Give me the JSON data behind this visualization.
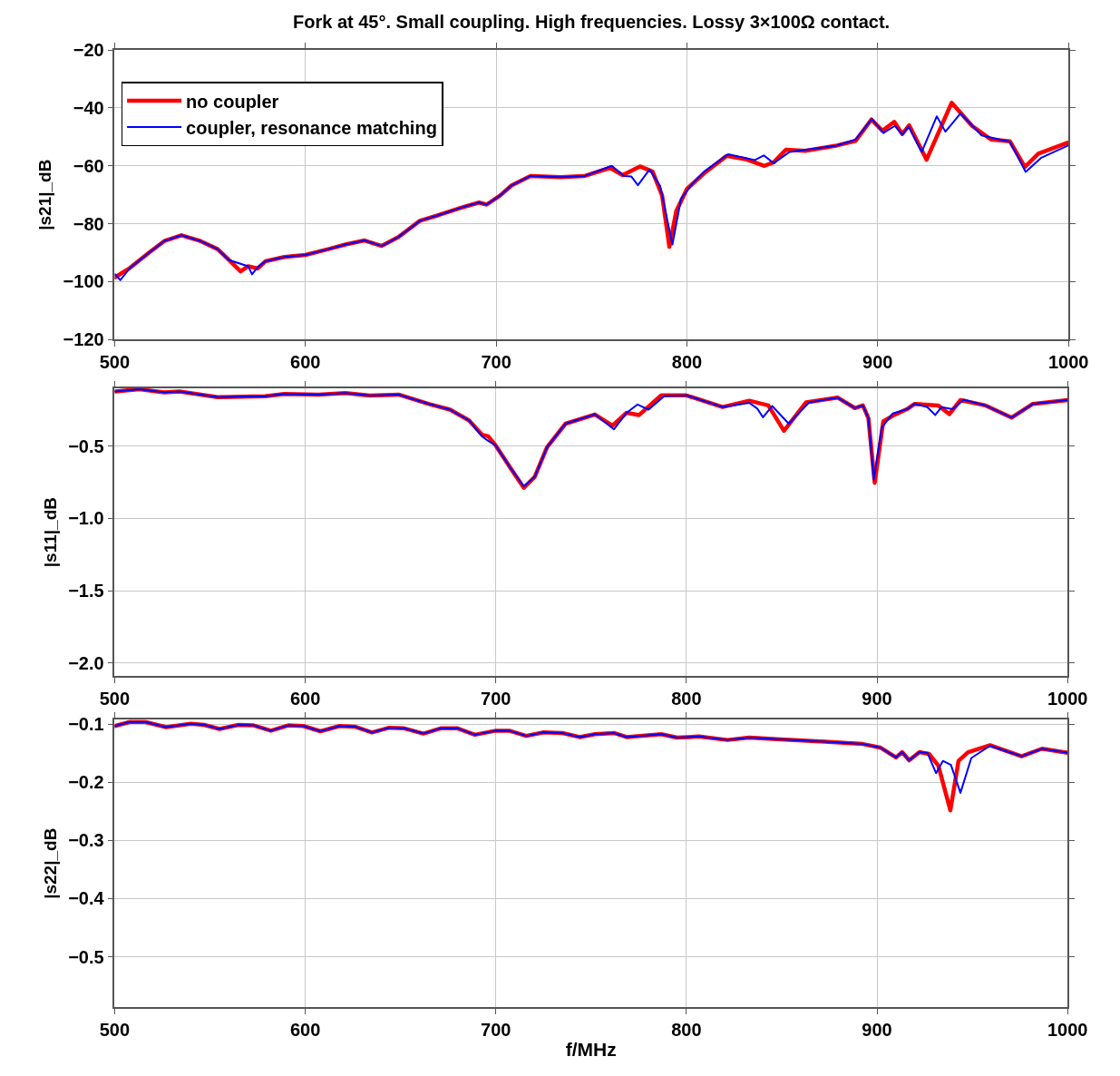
{
  "chart_data": [
    {
      "type": "line",
      "title": "Fork at 45°. Small coupling. High frequencies. Lossy 3×100Ω contact.",
      "ylabel": "|s21|_dB",
      "legend": "top left",
      "grid": true,
      "xlim": [
        500,
        1000
      ],
      "xticks": [
        500,
        600,
        700,
        800,
        900,
        1000
      ],
      "ylim": [
        -120,
        -20
      ],
      "yticks": [
        {
          "value": -20,
          "label": "−20"
        },
        {
          "value": -40,
          "label": "−40"
        },
        {
          "value": -60,
          "label": "−60"
        },
        {
          "value": -80,
          "label": "−80"
        },
        {
          "value": -100,
          "label": "−100"
        },
        {
          "value": -120,
          "label": "−120"
        }
      ],
      "series": [
        {
          "name": "no coupler",
          "color": "#ff0000",
          "x": [
            500.3,
            508,
            518,
            526,
            535,
            545,
            554,
            560,
            566,
            570,
            575,
            579,
            589,
            600,
            612,
            621,
            631,
            640,
            649,
            660,
            670,
            681,
            691,
            695,
            702,
            708,
            718,
            734,
            746.5,
            759.7,
            766.3,
            775.4,
            782,
            787,
            790.8,
            794.4,
            800,
            809,
            820.8,
            830.7,
            840.6,
            845.5,
            852,
            862,
            878.5,
            888.4,
            896.7,
            902.5,
            908.7,
            912.9,
            916.5,
            925.6,
            938.8,
            949.5,
            959.4,
            969.3,
            977.2,
            984.2,
            999.8
          ],
          "values": [
            -98.5,
            -95.3,
            -90,
            -86,
            -84,
            -86,
            -88.8,
            -92.6,
            -96.5,
            -94.7,
            -95.5,
            -93,
            -91.5,
            -90.8,
            -88.8,
            -87.2,
            -85.8,
            -87.7,
            -84.5,
            -79,
            -77,
            -74.6,
            -72.7,
            -73.4,
            -70.3,
            -66.8,
            -63.5,
            -63.9,
            -63.5,
            -60.7,
            -63.2,
            -60.2,
            -62,
            -70.3,
            -88,
            -75.7,
            -68,
            -62.6,
            -56.6,
            -57.7,
            -60,
            -58.8,
            -54.4,
            -54.8,
            -53,
            -51.4,
            -44,
            -47.9,
            -44.8,
            -49,
            -46,
            -57.9,
            -38.2,
            -46.2,
            -50.9,
            -51.5,
            -60.4,
            -55.8,
            -52
          ]
        },
        {
          "name": "coupler, resonance matching",
          "color": "#0000ff",
          "x": [
            500.3,
            503,
            508,
            518,
            526,
            535,
            545,
            554,
            560,
            570,
            572,
            575,
            579,
            589,
            600,
            612,
            621,
            631,
            640,
            649,
            660,
            670,
            681,
            691,
            695,
            702,
            708,
            718,
            734,
            746.5,
            760.6,
            767,
            770.9,
            774.3,
            780.4,
            786,
            792.4,
            796.9,
            802.6,
            809,
            821.6,
            835.6,
            840.3,
            845.5,
            853.8,
            878.5,
            888.4,
            897,
            903,
            909,
            912.9,
            916.2,
            923.1,
            931,
            935.5,
            943.4,
            954.5,
            969.3,
            977.6,
            985.8,
            999.8
          ],
          "values": [
            -97.5,
            -99.5,
            -95.3,
            -90,
            -86,
            -84,
            -86,
            -88.8,
            -92.6,
            -94.7,
            -97.5,
            -95,
            -93,
            -91.5,
            -90.8,
            -88.8,
            -87.2,
            -85.8,
            -87.7,
            -84.5,
            -79,
            -77,
            -74.6,
            -72.7,
            -73.4,
            -70.3,
            -66.8,
            -63.5,
            -63.9,
            -63.5,
            -60,
            -63.5,
            -63.7,
            -66.7,
            -61.3,
            -67,
            -87.2,
            -71.4,
            -66.4,
            -62,
            -56,
            -58,
            -56.4,
            -59.1,
            -55.2,
            -53,
            -50.9,
            -43.8,
            -48.7,
            -46.2,
            -49.3,
            -46.4,
            -55.2,
            -42.9,
            -48.2,
            -41.9,
            -49.5,
            -51.7,
            -62.1,
            -57.2,
            -53
          ]
        }
      ]
    },
    {
      "type": "line",
      "ylabel": "|s11|_dB",
      "grid": true,
      "xlim": [
        500,
        1000
      ],
      "xticks": [
        500,
        600,
        700,
        800,
        900,
        1000
      ],
      "ylim": [
        -2.09,
        -0.1
      ],
      "yticks": [
        {
          "value": -0.5,
          "label": "−0.5"
        },
        {
          "value": -1.0,
          "label": "−1.0"
        },
        {
          "value": -1.5,
          "label": "−1.5"
        },
        {
          "value": -2.0,
          "label": "−2.0"
        }
      ],
      "series": [
        {
          "color": "#ff0000",
          "x": [
            500.3,
            513,
            526,
            534,
            554,
            579,
            589,
            607,
            621,
            634,
            649,
            665,
            676,
            686,
            692.7,
            696,
            700,
            707.5,
            714.7,
            720.4,
            726.9,
            736.6,
            752,
            761.2,
            768.6,
            775.2,
            786.8,
            800,
            819,
            833,
            843,
            851.2,
            862.8,
            879.3,
            888.4,
            892.6,
            895.5,
            898.8,
            903.3,
            909,
            915.7,
            919.8,
            932.2,
            938,
            943.8,
            957,
            970.6,
            981.8,
            1000
          ],
          "values": [
            -0.121,
            -0.106,
            -0.128,
            -0.121,
            -0.16,
            -0.154,
            -0.139,
            -0.143,
            -0.132,
            -0.149,
            -0.143,
            -0.208,
            -0.247,
            -0.322,
            -0.42,
            -0.431,
            -0.496,
            -0.647,
            -0.788,
            -0.712,
            -0.506,
            -0.344,
            -0.28,
            -0.357,
            -0.269,
            -0.284,
            -0.148,
            -0.148,
            -0.229,
            -0.185,
            -0.218,
            -0.394,
            -0.196,
            -0.163,
            -0.236,
            -0.218,
            -0.306,
            -0.753,
            -0.328,
            -0.284,
            -0.244,
            -0.207,
            -0.218,
            -0.278,
            -0.181,
            -0.218,
            -0.302,
            -0.207,
            -0.181
          ]
        },
        {
          "color": "#0000ff",
          "x": [
            500.3,
            513,
            526,
            534,
            554,
            579,
            589,
            607,
            621,
            634,
            649,
            665,
            676,
            686,
            692.7,
            696,
            700,
            707.5,
            714.7,
            720.4,
            726.9,
            736.6,
            752,
            762,
            768.6,
            774.4,
            780.2,
            788.4,
            800,
            819,
            833,
            837.2,
            840.2,
            845,
            853.7,
            864.5,
            879.3,
            888.4,
            892.6,
            895.5,
            898.3,
            902.5,
            908.3,
            915.7,
            919.8,
            926.4,
            930.6,
            933.9,
            939.7,
            945.5,
            957,
            970.6,
            981.8,
            1000
          ],
          "values": [
            -0.121,
            -0.106,
            -0.128,
            -0.121,
            -0.16,
            -0.154,
            -0.139,
            -0.143,
            -0.132,
            -0.149,
            -0.143,
            -0.208,
            -0.247,
            -0.322,
            -0.431,
            -0.463,
            -0.496,
            -0.647,
            -0.777,
            -0.712,
            -0.506,
            -0.344,
            -0.28,
            -0.383,
            -0.269,
            -0.211,
            -0.247,
            -0.152,
            -0.148,
            -0.229,
            -0.2,
            -0.24,
            -0.3,
            -0.222,
            -0.344,
            -0.196,
            -0.163,
            -0.236,
            -0.218,
            -0.306,
            -0.731,
            -0.372,
            -0.273,
            -0.244,
            -0.207,
            -0.229,
            -0.284,
            -0.229,
            -0.244,
            -0.178,
            -0.218,
            -0.302,
            -0.207,
            -0.181
          ]
        }
      ]
    },
    {
      "type": "line",
      "xlabel": "f/MHz",
      "ylabel": "|s22|_dB",
      "grid": true,
      "xlim": [
        500,
        1000
      ],
      "xticks": [
        500,
        600,
        700,
        800,
        900,
        1000
      ],
      "ylim": [
        -0.587,
        -0.092
      ],
      "yticks": [
        {
          "value": -0.1,
          "label": "−0.1"
        },
        {
          "value": -0.2,
          "label": "−0.2"
        },
        {
          "value": -0.3,
          "label": "−0.3"
        },
        {
          "value": -0.4,
          "label": "−0.4"
        },
        {
          "value": -0.5,
          "label": "−0.5"
        }
      ],
      "series": [
        {
          "color": "#ff0000",
          "x": [
            500,
            508,
            516,
            527,
            540,
            547,
            555,
            565,
            573,
            582,
            591,
            599,
            608,
            618,
            626,
            635,
            644,
            652,
            662,
            671,
            680,
            689,
            700,
            707,
            716,
            725,
            735,
            744,
            752,
            762,
            768.6,
            786.8,
            795,
            806.6,
            821.5,
            833,
            849.6,
            872.7,
            892.6,
            901.7,
            910,
            913.2,
            916.9,
            922.3,
            927.3,
            932.2,
            938.5,
            942.8,
            947.8,
            959.3,
            975.9,
            986.6,
            1000
          ],
          "values": [
            -0.103,
            -0.096,
            -0.096,
            -0.105,
            -0.099,
            -0.101,
            -0.108,
            -0.101,
            -0.102,
            -0.111,
            -0.102,
            -0.103,
            -0.112,
            -0.103,
            -0.104,
            -0.114,
            -0.106,
            -0.107,
            -0.116,
            -0.107,
            -0.107,
            -0.118,
            -0.111,
            -0.111,
            -0.12,
            -0.114,
            -0.115,
            -0.122,
            -0.117,
            -0.115,
            -0.122,
            -0.117,
            -0.123,
            -0.121,
            -0.127,
            -0.123,
            -0.126,
            -0.13,
            -0.134,
            -0.14,
            -0.157,
            -0.148,
            -0.162,
            -0.148,
            -0.151,
            -0.171,
            -0.248,
            -0.163,
            -0.148,
            -0.136,
            -0.155,
            -0.142,
            -0.149
          ]
        },
        {
          "color": "#0000ff",
          "x": [
            500,
            508,
            516,
            527,
            540,
            547,
            555,
            565,
            573,
            582,
            591,
            599,
            608,
            618,
            626,
            635,
            644,
            652,
            662,
            671,
            680,
            689,
            700,
            707,
            716,
            725,
            735,
            744,
            752,
            762,
            768.6,
            786.8,
            795,
            806.6,
            821.5,
            833,
            849.6,
            872.7,
            892.6,
            901.7,
            910,
            913.2,
            916.9,
            922.3,
            926.4,
            931,
            934.6,
            938.8,
            943.8,
            949.5,
            959.3,
            975.9,
            986.6,
            1000
          ],
          "values": [
            -0.103,
            -0.096,
            -0.096,
            -0.105,
            -0.099,
            -0.101,
            -0.108,
            -0.101,
            -0.102,
            -0.111,
            -0.102,
            -0.103,
            -0.112,
            -0.103,
            -0.104,
            -0.114,
            -0.106,
            -0.107,
            -0.116,
            -0.107,
            -0.107,
            -0.118,
            -0.111,
            -0.111,
            -0.12,
            -0.114,
            -0.115,
            -0.122,
            -0.117,
            -0.115,
            -0.122,
            -0.117,
            -0.123,
            -0.121,
            -0.127,
            -0.123,
            -0.126,
            -0.13,
            -0.134,
            -0.14,
            -0.157,
            -0.148,
            -0.162,
            -0.148,
            -0.149,
            -0.184,
            -0.163,
            -0.17,
            -0.218,
            -0.158,
            -0.137,
            -0.155,
            -0.142,
            -0.149
          ]
        }
      ]
    }
  ]
}
